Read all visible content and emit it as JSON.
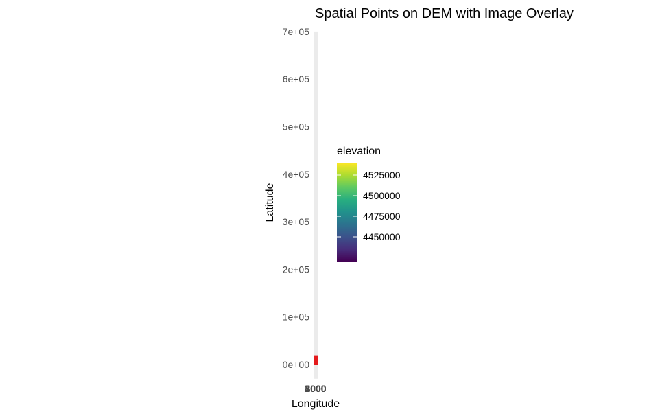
{
  "chart_data": {
    "type": "heatmap",
    "title": "Spatial Points on DEM with Image Overlay",
    "xlabel": "Longitude",
    "ylabel": "Latitude",
    "ylim": [
      -30000,
      700000
    ],
    "y_ticks": [
      {
        "value": 0,
        "label": "0e+00"
      },
      {
        "value": 100000,
        "label": "1e+05"
      },
      {
        "value": 200000,
        "label": "2e+05"
      },
      {
        "value": 300000,
        "label": "3e+05"
      },
      {
        "value": 400000,
        "label": "4e+05"
      },
      {
        "value": 500000,
        "label": "5e+05"
      },
      {
        "value": 600000,
        "label": "6e+05"
      },
      {
        "value": 700000,
        "label": "7e+05"
      }
    ],
    "x_ticks_overlapping": [
      "2000",
      "3000",
      "4000",
      "5000"
    ],
    "grid": false,
    "dem_raster": {
      "lat_range": [
        -30000,
        700000
      ],
      "color": "#ebebeb"
    },
    "points": {
      "lat_range": [
        0,
        15000
      ],
      "color": "#e41a1c"
    },
    "legend": {
      "title": "elevation",
      "placement": "right",
      "scale": "viridis",
      "range": [
        4420000,
        4540000
      ],
      "breaks": [
        {
          "value": 4525000,
          "label": "4525000"
        },
        {
          "value": 4500000,
          "label": "4500000"
        },
        {
          "value": 4475000,
          "label": "4475000"
        },
        {
          "value": 4450000,
          "label": "4450000"
        }
      ]
    }
  }
}
